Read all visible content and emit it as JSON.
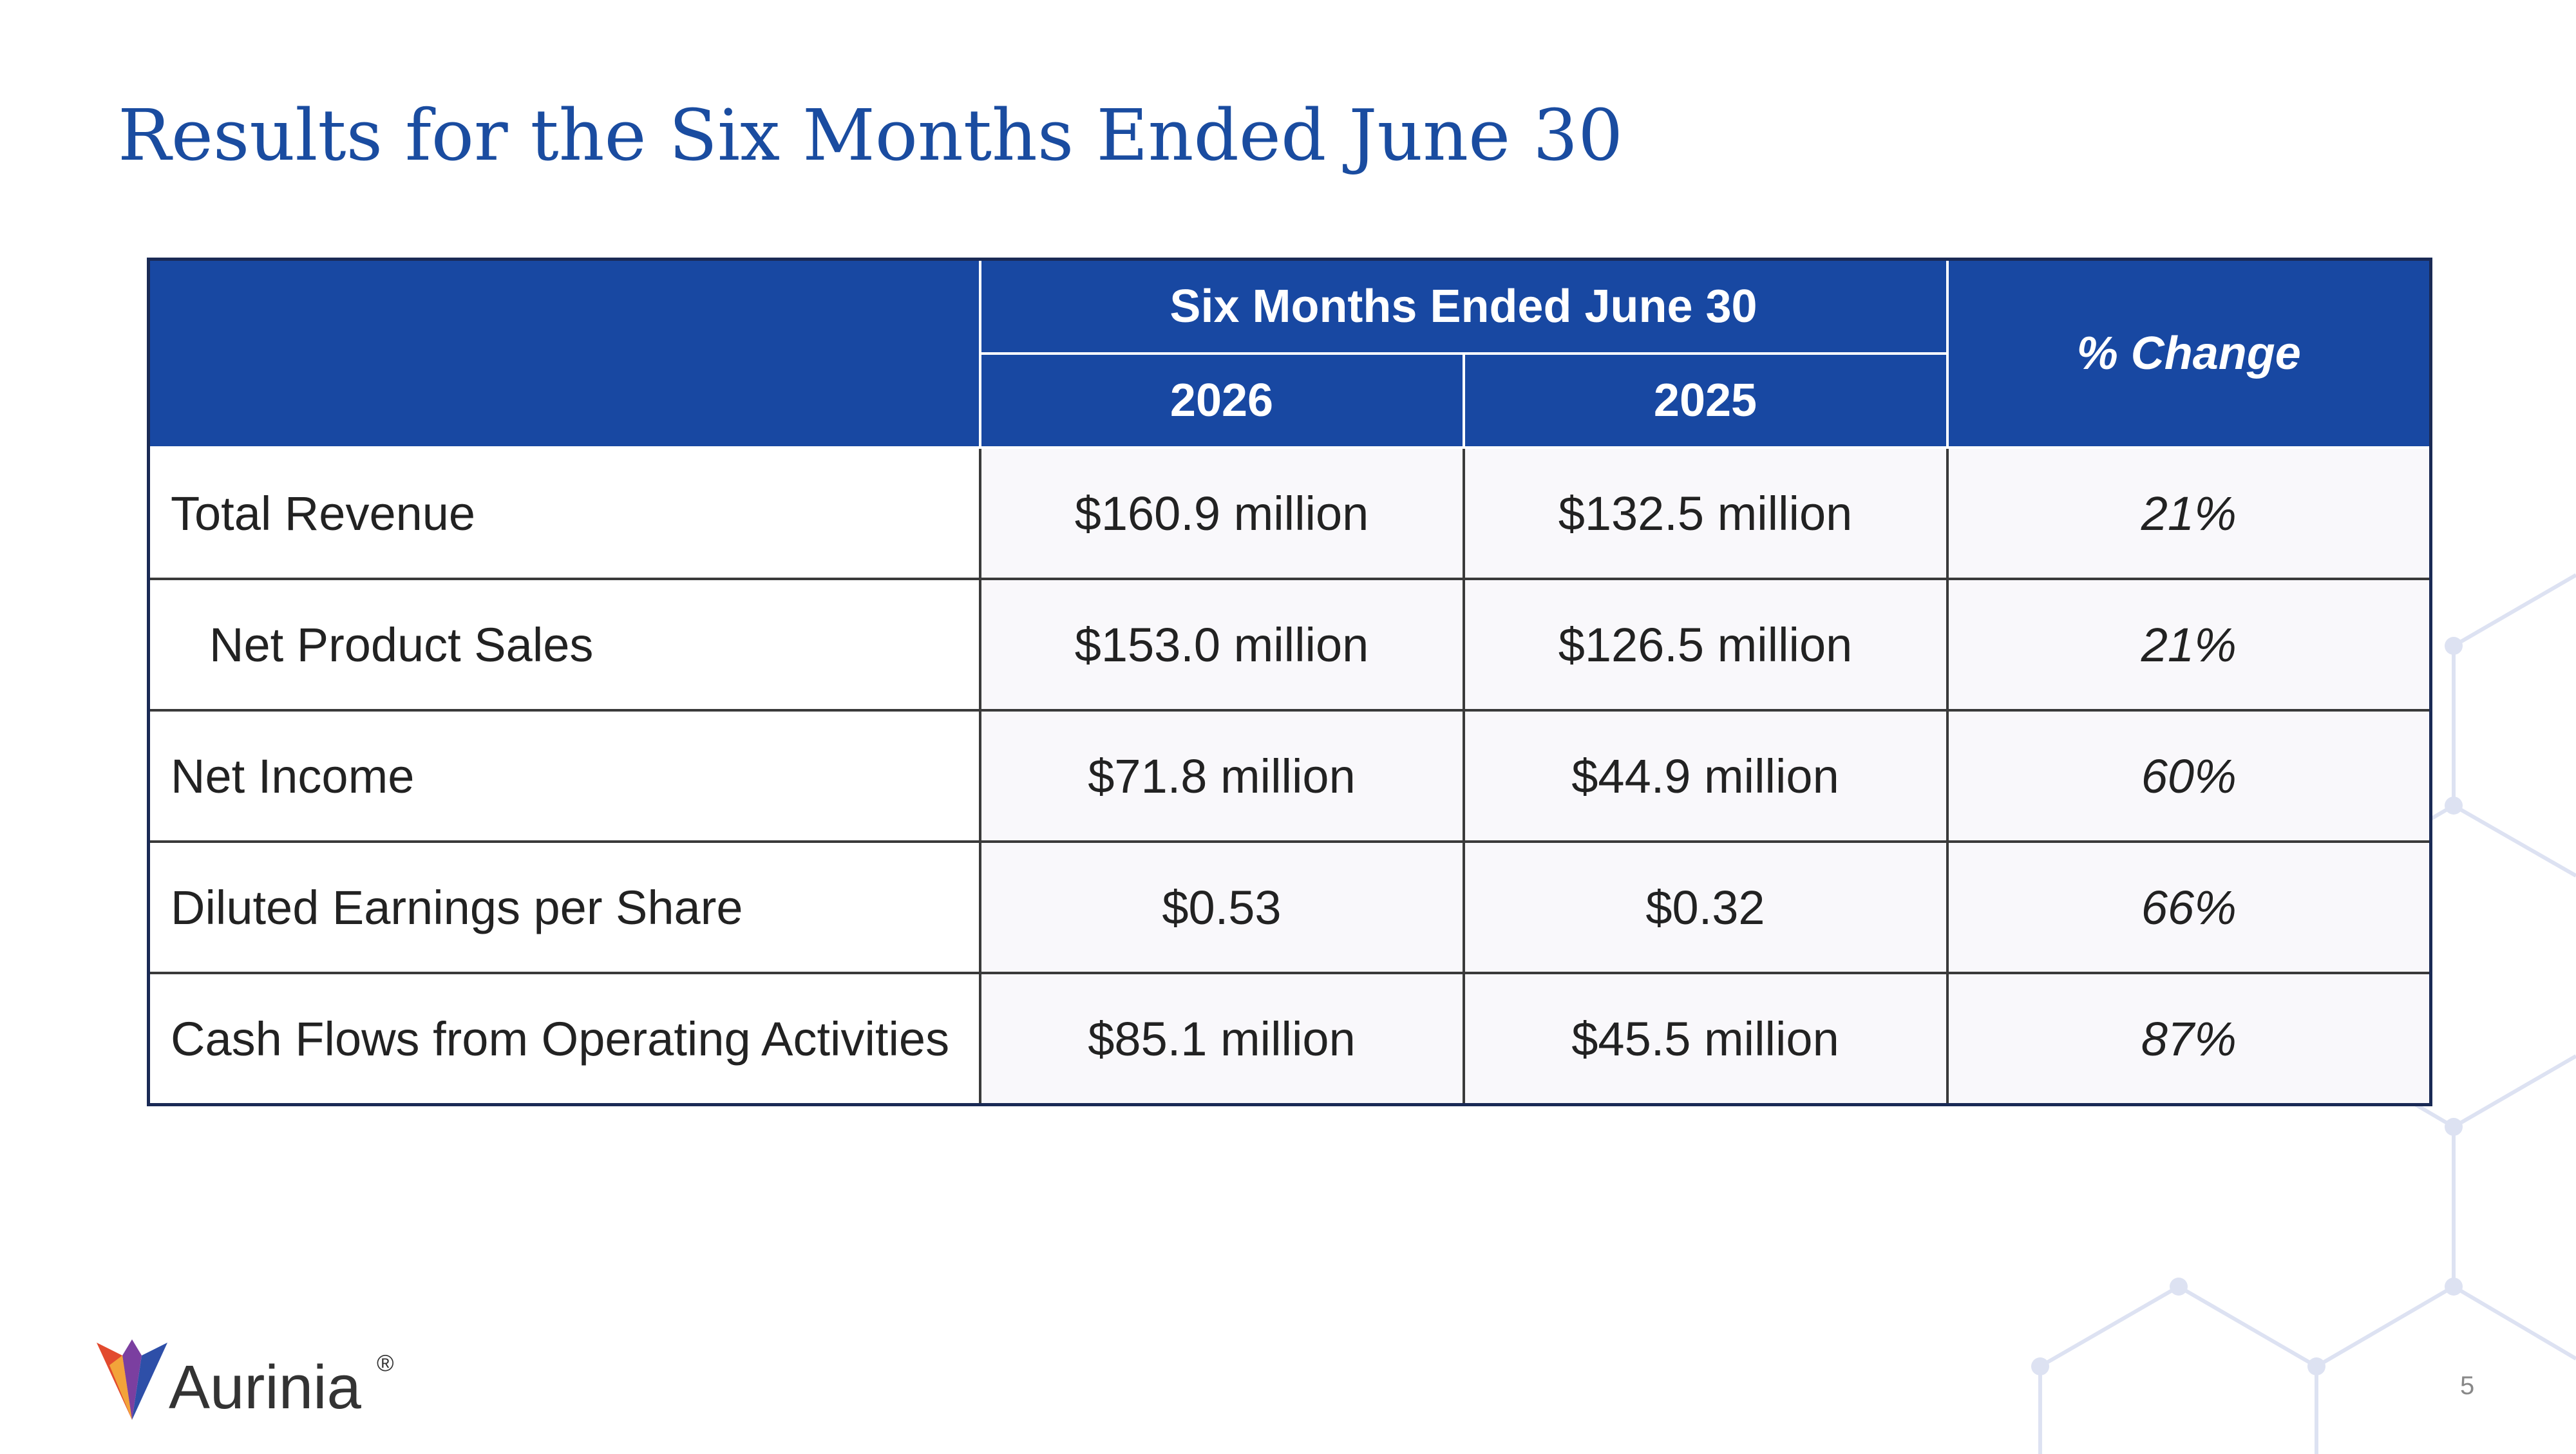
{
  "slide": {
    "title": "Results for the Six Months Ended June 30",
    "page_number": "5"
  },
  "table": {
    "group_header": "Six Months Ended June 30",
    "year_current": "2026",
    "year_prior": "2025",
    "change_header": "% Change",
    "rows": [
      {
        "label": "Total Revenue",
        "current": "$160.9 million",
        "prior": "$132.5 million",
        "change": "21%"
      },
      {
        "label": "Net Product Sales",
        "current": "$153.0 million",
        "prior": "$126.5 million",
        "change": "21%"
      },
      {
        "label": "Net Income",
        "current": "$71.8 million",
        "prior": "$44.9 million",
        "change": "60%"
      },
      {
        "label": "Diluted Earnings per Share",
        "current": "$0.53",
        "prior": "$0.32",
        "change": "66%"
      },
      {
        "label": "Cash Flows from Operating Activities",
        "current": "$85.1 million",
        "prior": "$45.5 million",
        "change": "87%"
      }
    ]
  },
  "logo": {
    "name": "Aurinia",
    "registered_mark": "®"
  },
  "colors": {
    "title": "#1A4CA0",
    "header_bg": "#1848A2",
    "molecule": "#DDE2F2"
  }
}
